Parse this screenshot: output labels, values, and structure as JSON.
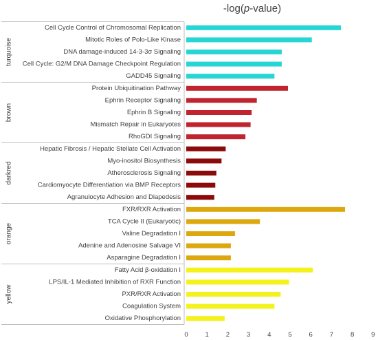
{
  "chart_data": {
    "type": "bar",
    "orientation": "horizontal",
    "title_prefix": "-log(",
    "title_italic": "p",
    "title_suffix": "-value)",
    "xlim": [
      0,
      9
    ],
    "xticks": [
      "0",
      "1",
      "2",
      "3",
      "4",
      "5",
      "6",
      "7",
      "8",
      "9"
    ],
    "grid": false,
    "groups": [
      {
        "name": "turquoise",
        "color": "#27D5D5",
        "categories": [
          "Cell Cycle Control of Chromosomal Replication",
          "Mitotic Roles of Polo-Like Kinase",
          "DNA damage-induced 14-3-3σ Signaling",
          "Cell Cycle: G2/M DNA Damage Checkpoint Regulation",
          "GADD45 Signaling"
        ],
        "values": [
          7.45,
          6.05,
          4.6,
          4.6,
          4.25
        ]
      },
      {
        "name": "brown",
        "color": "#C0252F",
        "categories": [
          "Protein Ubiquitination Pathway",
          "Ephrin Receptor Signaling",
          "Ephrin B Signaling",
          "Mismatch Repair in Eukaryotes",
          "RhoGDI Signaling"
        ],
        "values": [
          4.9,
          3.4,
          3.15,
          3.1,
          2.85
        ]
      },
      {
        "name": "darkred",
        "color": "#8B0A0A",
        "categories": [
          "Hepatic Fibrosis / Hepatic Stellate Cell Activation",
          "Myo-inositol Biosynthesis",
          "Atherosclerosis Signaling",
          "Cardiomyocyte Differentiation via BMP Receptors",
          "Agranulocyte Adhesion and Diapedesis"
        ],
        "values": [
          1.9,
          1.7,
          1.45,
          1.4,
          1.35
        ]
      },
      {
        "name": "orange",
        "color": "#DDA80F",
        "categories": [
          "FXR/RXR Activation",
          "TCA Cycle II (Eukaryotic)",
          "Valine Degradation I",
          "Adenine and Adenosine Salvage VI",
          "Asparagine Degradation I"
        ],
        "values": [
          7.65,
          3.55,
          2.35,
          2.15,
          2.15
        ]
      },
      {
        "name": "yellow",
        "color": "#F4F21C",
        "categories": [
          "Fatty Acid β-oxidation I",
          "LPS/IL-1 Mediated Inhibition of RXR Function",
          "PXR/RXR Activation",
          "Coagulation System",
          "Oxidative Phosphorylation"
        ],
        "values": [
          6.1,
          4.95,
          4.55,
          4.25,
          1.85
        ]
      }
    ]
  }
}
